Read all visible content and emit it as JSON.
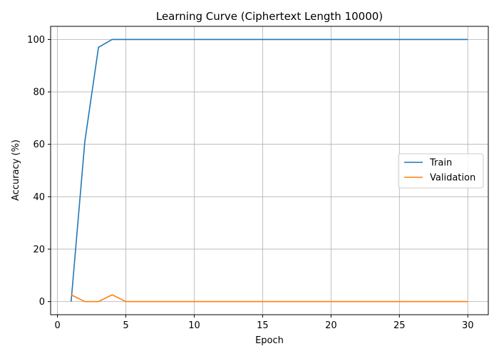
{
  "chart_data": {
    "type": "line",
    "title": "Learning Curve (Ciphertext Length 10000)",
    "xlabel": "Epoch",
    "ylabel": "Accuracy (%)",
    "xlim": [
      -0.5,
      31.5
    ],
    "ylim": [
      -5,
      105
    ],
    "xticks": [
      0,
      5,
      10,
      15,
      20,
      25,
      30
    ],
    "yticks": [
      0,
      20,
      40,
      60,
      80,
      100
    ],
    "grid": true,
    "legend_position": "center-right",
    "x": [
      1,
      2,
      3,
      4,
      5,
      6,
      7,
      8,
      9,
      10,
      11,
      12,
      13,
      14,
      15,
      16,
      17,
      18,
      19,
      20,
      21,
      22,
      23,
      24,
      25,
      26,
      27,
      28,
      29,
      30
    ],
    "series": [
      {
        "name": "Train",
        "color": "#1f77b4",
        "values": [
          0,
          61,
          97,
          100,
          100,
          100,
          100,
          100,
          100,
          100,
          100,
          100,
          100,
          100,
          100,
          100,
          100,
          100,
          100,
          100,
          100,
          100,
          100,
          100,
          100,
          100,
          100,
          100,
          100,
          100
        ]
      },
      {
        "name": "Validation",
        "color": "#ff7f0e",
        "values": [
          2.6,
          0,
          0,
          2.6,
          0,
          0,
          0,
          0,
          0,
          0,
          0,
          0,
          0,
          0,
          0,
          0,
          0,
          0,
          0,
          0,
          0,
          0,
          0,
          0,
          0,
          0,
          0,
          0,
          0,
          0
        ]
      }
    ]
  }
}
